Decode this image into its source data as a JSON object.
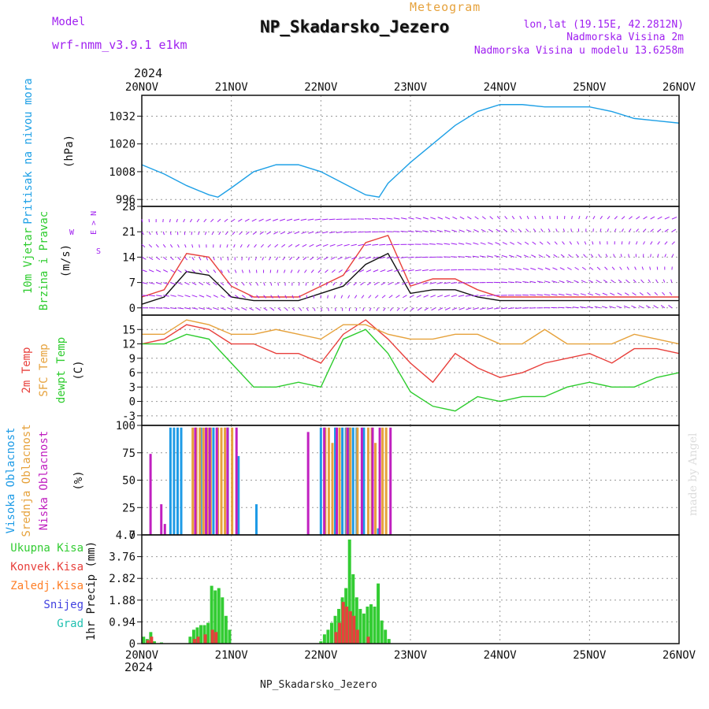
{
  "header": {
    "meteogram_label": "Meteogram",
    "station_title": "NP_Skadarsko_Jezero",
    "model_label": "Model",
    "model_name": "wrf-nmm_v3.9.1 e1km",
    "lonlat": "lon,lat (19.15E, 42.2812N)",
    "altitude": "Nadmorska Visina 2m",
    "model_altitude": "Nadmorska Visina u modelu 13.6258m",
    "year_top": "2024",
    "year_bottom": "2024",
    "footer_station": "NP_Skadarsko_Jezero",
    "credit": "made by Angel"
  },
  "colors": {
    "pressure": "#1ea0e6",
    "temp2m": "#e8403c",
    "sfc_temp": "#e6a23c",
    "dewpt": "#2ecc2e",
    "high_cloud": "#1e9be6",
    "mid_cloud": "#e6a23c",
    "low_cloud": "#c020c0",
    "total_precip": "#33cc33",
    "conv_precip": "#e8403c",
    "frozen_precip": "#ff7f27",
    "snow": "#4040e0",
    "hail": "#20c0b0",
    "wind_barbs": "#a020f0"
  },
  "chart_data": {
    "x_ticks": [
      "20NOV",
      "21NOV",
      "22NOV",
      "23NOV",
      "24NOV",
      "25NOV",
      "26NOV"
    ],
    "panels": [
      {
        "id": "pressure",
        "type": "line",
        "ylabel": [
          "Pritisak na nivou mora",
          "(hPa)"
        ],
        "ylim": [
          993,
          1041
        ],
        "yticks": [
          "996",
          "1008",
          "1020",
          "1032"
        ],
        "series": [
          {
            "x": [
              0,
              0.25,
              0.5,
              0.75,
              0.85,
              1.0,
              1.25,
              1.5,
              1.75,
              2.0,
              2.25,
              2.5,
              2.65,
              2.75,
              3.0,
              3.25,
              3.5,
              3.75,
              4.0,
              4.25,
              4.5,
              4.75,
              5.0,
              5.25,
              5.5,
              5.75,
              6.0
            ],
            "y": [
              1011,
              1007,
              1002,
              998,
              997,
              1001,
              1008,
              1011,
              1011,
              1008,
              1003,
              998,
              997,
              1003,
              1012,
              1020,
              1028,
              1034,
              1037,
              1037,
              1036,
              1036,
              1036,
              1034,
              1031,
              1030,
              1029
            ]
          }
        ]
      },
      {
        "id": "wind",
        "type": "line",
        "ylabel": [
          "10m Vjetar",
          "Brzina i Pravac",
          "(m/s)"
        ],
        "legend_compass": [
          "N",
          "E",
          "S",
          "W"
        ],
        "ylim": [
          -2,
          28
        ],
        "yticks": [
          "0",
          "7",
          "14",
          "21",
          "28"
        ],
        "series": [
          {
            "name": "speed",
            "x": [
              0,
              0.25,
              0.5,
              0.75,
              1.0,
              1.25,
              1.5,
              1.75,
              2.0,
              2.25,
              2.5,
              2.75,
              3.0,
              3.25,
              3.5,
              3.75,
              4.0,
              4.5,
              5.0,
              5.5,
              6.0
            ],
            "y": [
              1,
              3,
              10,
              9,
              3,
              2,
              2,
              2,
              4,
              6,
              12,
              15,
              4,
              5,
              5,
              3,
              2,
              2,
              2,
              2,
              2
            ]
          },
          {
            "name": "gust",
            "x": [
              0,
              0.25,
              0.5,
              0.75,
              1.0,
              1.25,
              1.5,
              1.75,
              2.0,
              2.25,
              2.5,
              2.75,
              3.0,
              3.25,
              3.5,
              3.75,
              4.0,
              4.5,
              5.0,
              5.5,
              6.0
            ],
            "y": [
              3,
              5,
              15,
              14,
              6,
              3,
              3,
              3,
              6,
              9,
              18,
              20,
              6,
              8,
              8,
              5,
              3,
              3,
              3,
              3,
              3
            ]
          }
        ]
      },
      {
        "id": "temperature",
        "type": "line",
        "ylabel": [
          "2m Temp",
          "SFC Temp",
          "dewpt Temp",
          "(C)"
        ],
        "ylim": [
          -5,
          18
        ],
        "yticks": [
          "-3",
          "0",
          "3",
          "6",
          "9",
          "12",
          "15"
        ],
        "series": [
          {
            "name": "2m Temp",
            "x": [
              0,
              0.25,
              0.5,
              0.75,
              1.0,
              1.25,
              1.5,
              1.75,
              2.0,
              2.25,
              2.5,
              2.75,
              3.0,
              3.25,
              3.5,
              3.75,
              4.0,
              4.25,
              4.5,
              4.75,
              5.0,
              5.25,
              5.5,
              5.75,
              6.0
            ],
            "y": [
              12,
              13,
              16,
              15,
              12,
              12,
              10,
              10,
              8,
              14,
              17,
              13,
              8,
              4,
              10,
              7,
              5,
              6,
              8,
              9,
              10,
              8,
              11,
              11,
              10
            ]
          },
          {
            "name": "SFC Temp",
            "x": [
              0,
              0.25,
              0.5,
              0.75,
              1.0,
              1.25,
              1.5,
              1.75,
              2.0,
              2.25,
              2.5,
              2.75,
              3.0,
              3.25,
              3.5,
              3.75,
              4.0,
              4.25,
              4.5,
              4.75,
              5.0,
              5.25,
              5.5,
              5.75,
              6.0
            ],
            "y": [
              14,
              14,
              17,
              16,
              14,
              14,
              15,
              14,
              13,
              16,
              16,
              14,
              13,
              13,
              14,
              14,
              12,
              12,
              15,
              12,
              12,
              12,
              14,
              13,
              12
            ]
          },
          {
            "name": "dewpt Temp",
            "x": [
              0,
              0.25,
              0.5,
              0.75,
              1.0,
              1.25,
              1.5,
              1.75,
              2.0,
              2.25,
              2.5,
              2.75,
              3.0,
              3.25,
              3.5,
              3.75,
              4.0,
              4.25,
              4.5,
              4.75,
              5.0,
              5.25,
              5.5,
              5.75,
              6.0
            ],
            "y": [
              12,
              12,
              14,
              13,
              8,
              3,
              3,
              4,
              3,
              13,
              15,
              10,
              2,
              -1,
              -2,
              1,
              0,
              1,
              1,
              3,
              4,
              3,
              3,
              5,
              6
            ]
          }
        ]
      },
      {
        "id": "cloud",
        "type": "bar",
        "ylabel": [
          "Visoka Oblacnost",
          "Srednja Oblacnost",
          "Niska Oblacnost",
          "(%)"
        ],
        "ylim": [
          0,
          100
        ],
        "yticks": [
          "0",
          "25",
          "50",
          "75",
          "100"
        ],
        "series": [
          {
            "name": "high",
            "x": [
              0.32,
              0.36,
              0.4,
              0.44,
              0.66,
              0.8,
              0.96,
              1.08,
              1.28,
              2.0,
              2.16,
              2.24,
              2.28,
              2.32,
              2.36,
              2.4,
              2.48,
              2.64
            ],
            "y": [
              98,
              98,
              98,
              98,
              98,
              98,
              98,
              72,
              28,
              98,
              98,
              98,
              98,
              98,
              98,
              98,
              98,
              6
            ]
          },
          {
            "name": "mid",
            "x": [
              0.56,
              0.6,
              0.64,
              0.68,
              0.72,
              0.76,
              0.84,
              0.88,
              0.92,
              1.0,
              2.04,
              2.08,
              2.12,
              2.2,
              2.28,
              2.32,
              2.4,
              2.52,
              2.56,
              2.6,
              2.68,
              2.72
            ],
            "y": [
              98,
              98,
              98,
              98,
              98,
              98,
              98,
              98,
              98,
              98,
              98,
              98,
              84,
              98,
              98,
              98,
              98,
              98,
              98,
              84,
              98,
              98
            ]
          },
          {
            "name": "low",
            "x": [
              0.08,
              0.2,
              0.24,
              0.58,
              0.7,
              0.74,
              0.82,
              0.94,
              1.04,
              1.84,
              2.02,
              2.16,
              2.28,
              2.44,
              2.56,
              2.64,
              2.76
            ],
            "y": [
              74,
              28,
              10,
              98,
              98,
              98,
              98,
              98,
              98,
              94,
              98,
              98,
              98,
              98,
              98,
              98,
              98
            ]
          }
        ]
      },
      {
        "id": "precip",
        "type": "bar",
        "ylabel": [
          "1hr Precip (mm)"
        ],
        "legend": [
          "Ukupna Kisa",
          "Konvek.Kisa",
          "Zaledj.Kisa",
          "Snijeg",
          "Grad"
        ],
        "ylim": [
          0,
          4.7
        ],
        "yticks": [
          "0",
          "0.94",
          "1.88",
          "2.82",
          "3.76",
          "4.7"
        ],
        "series": [
          {
            "name": "Ukupna Kisa",
            "x": [
              0.02,
              0.06,
              0.1,
              0.14,
              0.22,
              0.54,
              0.58,
              0.62,
              0.66,
              0.7,
              0.74,
              0.78,
              0.82,
              0.86,
              0.9,
              0.94,
              0.98,
              2.0,
              2.04,
              2.08,
              2.12,
              2.16,
              2.2,
              2.24,
              2.28,
              2.32,
              2.36,
              2.4,
              2.44,
              2.48,
              2.52,
              2.56,
              2.6,
              2.64,
              2.68,
              2.72,
              2.76
            ],
            "y": [
              0.3,
              0.2,
              0.5,
              0.1,
              0.05,
              0.3,
              0.6,
              0.7,
              0.8,
              0.8,
              0.9,
              2.5,
              2.3,
              2.4,
              2.0,
              1.2,
              0.6,
              0.1,
              0.4,
              0.6,
              0.9,
              1.2,
              1.5,
              2.0,
              2.4,
              4.5,
              3.0,
              2.0,
              1.5,
              1.3,
              1.6,
              1.7,
              1.6,
              2.6,
              1.0,
              0.6,
              0.2
            ]
          },
          {
            "name": "Konvek.Kisa",
            "x": [
              0.06,
              0.1,
              0.58,
              0.62,
              0.7,
              0.78,
              0.82,
              2.16,
              2.2,
              2.24,
              2.28,
              2.32,
              2.36,
              2.4,
              2.52
            ],
            "y": [
              0.15,
              0.3,
              0.2,
              0.3,
              0.4,
              0.6,
              0.5,
              0.5,
              0.9,
              1.8,
              1.6,
              1.4,
              1.2,
              0.6,
              0.3
            ]
          }
        ]
      }
    ]
  }
}
